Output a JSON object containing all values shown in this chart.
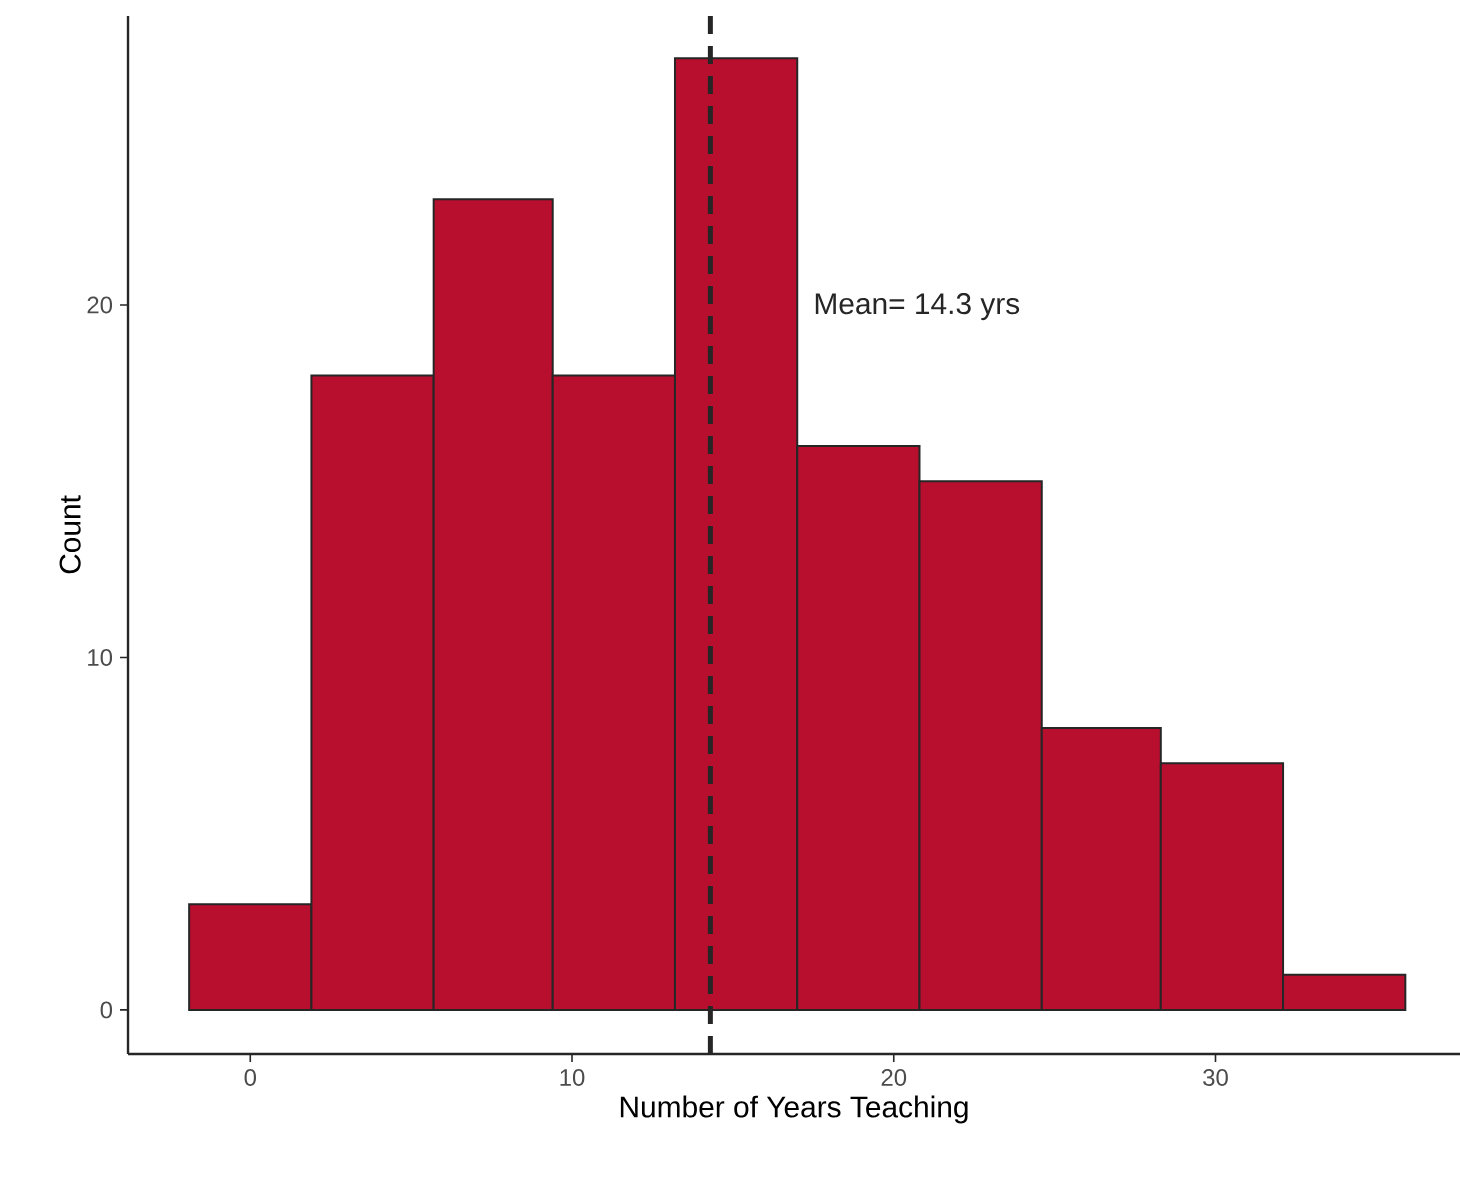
{
  "chart_data": {
    "type": "histogram",
    "xlabel": "Number of Years Teaching",
    "ylabel": "Count",
    "bins": [
      -1.9,
      1.9,
      5.7,
      9.4,
      13.2,
      17.0,
      20.8,
      24.6,
      28.3,
      32.1,
      35.9
    ],
    "values": [
      3,
      18,
      23,
      18,
      27,
      16,
      15,
      8,
      7,
      1
    ],
    "color": "#b80f2f",
    "xlim": [
      -3.8,
      37.6
    ],
    "ylim": [
      -1.25,
      28.2
    ],
    "xticks": [
      0,
      10,
      20,
      30
    ],
    "yticks": [
      0,
      10,
      20
    ],
    "grid": false,
    "ref_lines": [
      {
        "axis": "x",
        "value": 14.3,
        "label": "Mean= 14.3 yrs",
        "color": "#262626",
        "line_style": "dashed"
      }
    ]
  }
}
